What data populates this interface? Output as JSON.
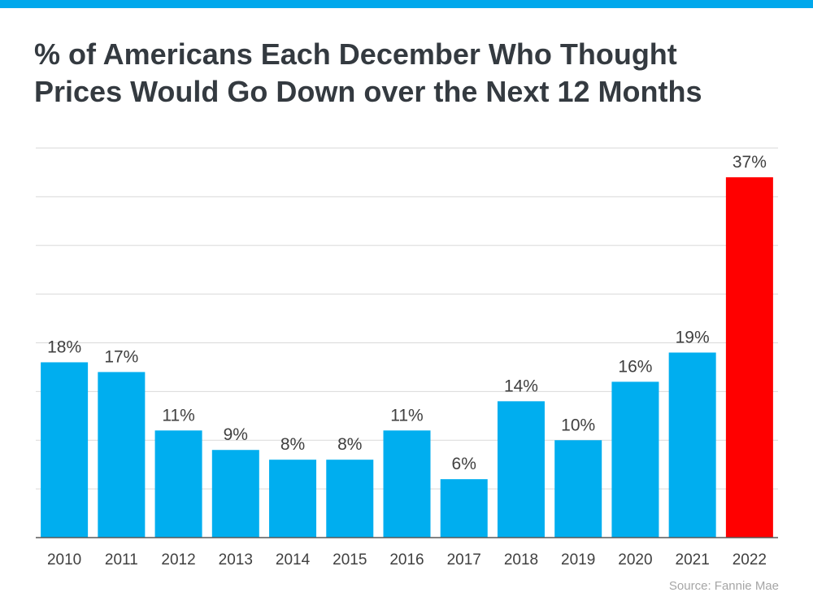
{
  "title_lines": [
    "% of Americans Each December Who Thought",
    "Prices Would Go Down over the Next 12 Months"
  ],
  "source": "Source: Fannie Mae",
  "colors": {
    "top_bar": "#00a8ec",
    "bar_default": "#00aeef",
    "bar_highlight": "#ff0000",
    "gridline": "#d9d9d9",
    "axis": "#595959",
    "label_text": "#404040"
  },
  "chart_data": {
    "type": "bar",
    "title": "% of Americans Each December Who Thought Prices Would Go Down over the Next 12 Months",
    "categories": [
      "2010",
      "2011",
      "2012",
      "2013",
      "2014",
      "2015",
      "2016",
      "2017",
      "2018",
      "2019",
      "2020",
      "2021",
      "2022"
    ],
    "values": [
      18,
      17,
      11,
      9,
      8,
      8,
      11,
      6,
      14,
      10,
      16,
      19,
      37
    ],
    "data_labels": [
      "18%",
      "17%",
      "11%",
      "9%",
      "8%",
      "8%",
      "11%",
      "6%",
      "14%",
      "10%",
      "16%",
      "19%",
      "37%"
    ],
    "highlight_index": 12,
    "ylim": [
      0,
      40
    ],
    "grid": true,
    "grid_step": 5,
    "xlabel": "",
    "ylabel": ""
  }
}
